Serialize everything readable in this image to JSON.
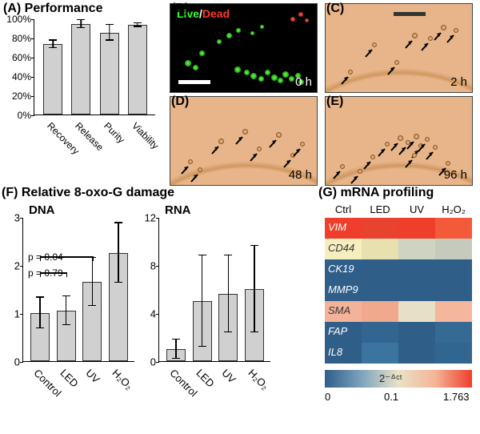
{
  "panelA": {
    "label": "(A) Performance",
    "type": "bar",
    "ylim": [
      0,
      100
    ],
    "ytick_step": 20,
    "ytick_suffix": "%",
    "categories": [
      "Recovery",
      "Release",
      "Purity",
      "Viability"
    ],
    "values": [
      73,
      94,
      85,
      93
    ],
    "errors": [
      4,
      4,
      8,
      2
    ],
    "bar_color": "#d0d0d0",
    "bar_border": "#333333",
    "axis_color": "#000000",
    "label_fontsize": 12
  },
  "panelB": {
    "label": "(B)",
    "time_label": "0 h",
    "bg": "#000000",
    "live_text": "Live",
    "live_color": "#2eff2e",
    "sep": "/",
    "dead_text": "Dead",
    "dead_color": "#ff3a2a",
    "scalebar_width": 40,
    "green_cells": [
      [
        18,
        70,
        8
      ],
      [
        28,
        76,
        7
      ],
      [
        36,
        58,
        7
      ],
      [
        58,
        44,
        6
      ],
      [
        70,
        36,
        7
      ],
      [
        82,
        30,
        6
      ],
      [
        80,
        78,
        8
      ],
      [
        92,
        82,
        7
      ],
      [
        100,
        86,
        8
      ],
      [
        110,
        90,
        7
      ],
      [
        118,
        82,
        7
      ],
      [
        126,
        88,
        8
      ],
      [
        134,
        92,
        7
      ],
      [
        140,
        84,
        8
      ],
      [
        148,
        90,
        7
      ],
      [
        156,
        86,
        7
      ],
      [
        160,
        94,
        7
      ],
      [
        100,
        34,
        5
      ],
      [
        112,
        26,
        5
      ]
    ],
    "red_cells": [
      [
        150,
        16,
        6
      ],
      [
        160,
        10,
        6
      ],
      [
        168,
        18,
        5
      ]
    ]
  },
  "panelC": {
    "label": "(C)",
    "time_label": "2 h",
    "bg": "#e8b58a",
    "scalebar_color": "#333333",
    "scalebar_width": 40,
    "cells": [
      [
        28,
        82,
        6
      ],
      [
        58,
        48,
        6
      ],
      [
        86,
        70,
        6
      ],
      [
        108,
        36,
        7
      ],
      [
        128,
        40,
        6
      ],
      [
        144,
        26,
        7
      ],
      [
        160,
        30,
        6
      ]
    ]
  },
  "panelD": {
    "label": "(D)",
    "time_label": "48 h",
    "bg": "#e8b58a",
    "cells": [
      [
        22,
        78,
        6
      ],
      [
        34,
        88,
        6
      ],
      [
        60,
        52,
        7
      ],
      [
        90,
        40,
        7
      ],
      [
        108,
        62,
        6
      ],
      [
        132,
        44,
        7
      ],
      [
        150,
        70,
        6
      ],
      [
        162,
        56,
        6
      ]
    ]
  },
  "panelE": {
    "label": "(E)",
    "time_label": "96 h",
    "bg": "#e8b58a",
    "cells": [
      [
        18,
        84,
        6
      ],
      [
        40,
        90,
        6
      ],
      [
        56,
        72,
        6
      ],
      [
        74,
        56,
        6
      ],
      [
        90,
        48,
        7
      ],
      [
        100,
        54,
        6
      ],
      [
        110,
        46,
        7
      ],
      [
        116,
        58,
        6
      ],
      [
        124,
        50,
        6
      ],
      [
        134,
        60,
        6
      ],
      [
        108,
        70,
        6
      ],
      [
        150,
        80,
        6
      ]
    ]
  },
  "panelF": {
    "label": "(F) Relative 8-oxo-G damage",
    "left": {
      "title": "DNA",
      "ylim": [
        0,
        3
      ],
      "ytick_step": 1,
      "categories": [
        "Control",
        "LED",
        "UV",
        "H₂O₂"
      ],
      "values": [
        1.0,
        1.05,
        1.65,
        2.25
      ],
      "errors": [
        0.32,
        0.3,
        0.5,
        0.62
      ],
      "p_texts": [
        "p = 0.04",
        "p = 0.79"
      ]
    },
    "right": {
      "title": "RNA",
      "ylim": [
        0,
        12
      ],
      "ytick_step": 4,
      "categories": [
        "Control",
        "LED",
        "UV",
        "H₂O₂"
      ],
      "values": [
        1.0,
        5.0,
        5.6,
        6.0
      ],
      "errors": [
        0.8,
        3.8,
        3.2,
        3.6
      ]
    },
    "bar_color": "#d0d0d0"
  },
  "panelG": {
    "label": "(G) mRNA profiling",
    "columns": [
      "Ctrl",
      "LED",
      "UV",
      "H₂O₂"
    ],
    "genes": [
      "VIM",
      "CD44",
      "CK19",
      "MMP9",
      "SMA",
      "FAP",
      "IL8"
    ],
    "colors": [
      [
        "#ef3e2c",
        "#e8432e",
        "#ef3e2c",
        "#f25a3a"
      ],
      [
        "#f7eec0",
        "#e9e0b0",
        "#cfd3c2",
        "#c5cabc"
      ],
      [
        "#2f5e88",
        "#2f5e88",
        "#2f5e88",
        "#2f5e88"
      ],
      [
        "#2f5e88",
        "#2f5e88",
        "#2f5e88",
        "#2f5e88"
      ],
      [
        "#f3b39a",
        "#f1a98e",
        "#e7e0c8",
        "#f4b79e"
      ],
      [
        "#2f5e88",
        "#326690",
        "#2f5e88",
        "#356a94"
      ],
      [
        "#2f5e88",
        "#3a749f",
        "#2f5e88",
        "#316690"
      ]
    ],
    "gene_label_color": "#ffffff",
    "colorbar": {
      "label": "2⁻ᐞᶜᵗ",
      "min_label": "0",
      "mid_label": "0.1",
      "max_label": "1.763",
      "stops": [
        "#2f5e88",
        "#7ea3bd",
        "#e9e2c6",
        "#f4b597",
        "#ef3e2c"
      ]
    }
  }
}
